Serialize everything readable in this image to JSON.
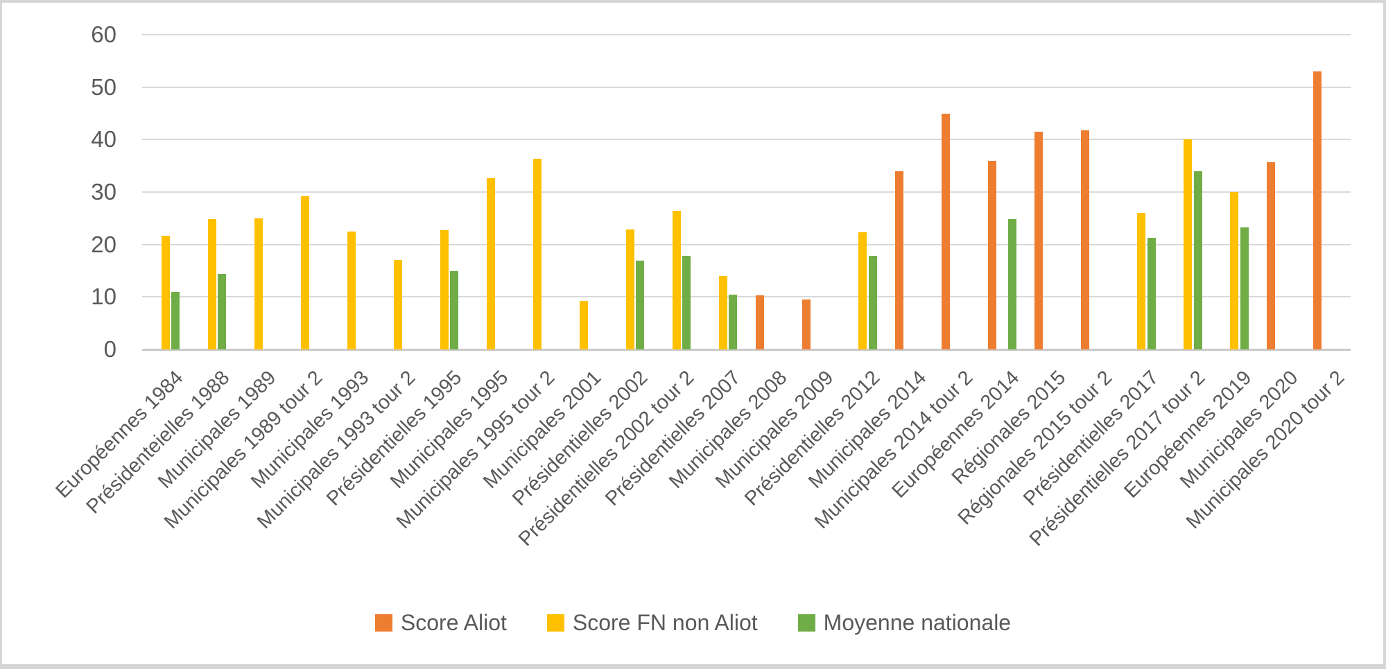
{
  "frame": {
    "border_color": "#d6d6d6"
  },
  "chart_data": {
    "type": "bar",
    "title": "",
    "xlabel": "",
    "ylabel": "",
    "ylim": [
      0,
      60
    ],
    "yticks": [
      0,
      10,
      20,
      30,
      40,
      50,
      60
    ],
    "grid": "horizontal",
    "legend_position": "bottom",
    "gridline_color": "#d9d9d9",
    "axis_line_color": "#c9c9c9",
    "text_color": "#595959",
    "categories": [
      "Européennes 1984",
      "Présidenteielles 1988",
      "Municipales 1989",
      "Municipales 1989 tour 2",
      "Municipales 1993",
      "Municipales 1993 tour 2",
      "Présidentielles 1995",
      "Municipales 1995",
      "Municipales 1995 tour 2",
      "Municipales 2001",
      "Présidentielles 2002",
      "Présidentielles 2002 tour 2",
      "Présidentielles 2007",
      "Municipales 2008",
      "Municipales 2009",
      "Présidentielles 2012",
      "Municipales 2014",
      "Municipales 2014 tour 2",
      "Européennes 2014",
      "Régionales 2015",
      "Régionales 2015 tour 2",
      "Présidentielles 2017",
      "Présidentielles 2017 tour 2",
      "Européennes 2019",
      "Municipales 2020",
      "Municipales 2020 tour 2"
    ],
    "series": [
      {
        "name": "Score Aliot",
        "color": "#ED7D31",
        "values": [
          null,
          null,
          null,
          null,
          null,
          null,
          null,
          null,
          null,
          null,
          null,
          null,
          null,
          10.3,
          9.5,
          null,
          34,
          45,
          35.9,
          41.5,
          41.8,
          null,
          null,
          null,
          35.7,
          53
        ]
      },
      {
        "name": "Score FN non Aliot",
        "color": "#FFC000",
        "values": [
          21.7,
          24.9,
          25,
          29.2,
          22.5,
          17,
          22.7,
          32.6,
          36.3,
          9.3,
          22.8,
          26.4,
          14,
          null,
          null,
          22.4,
          null,
          null,
          null,
          null,
          null,
          26,
          40,
          30,
          null,
          null
        ]
      },
      {
        "name": "Moyenne nationale",
        "color": "#70AD47",
        "values": [
          11,
          14.4,
          null,
          null,
          null,
          null,
          15,
          null,
          null,
          null,
          16.9,
          17.8,
          10.4,
          null,
          null,
          17.9,
          null,
          null,
          24.9,
          null,
          null,
          21.3,
          33.9,
          23.3,
          null,
          null
        ]
      }
    ]
  }
}
